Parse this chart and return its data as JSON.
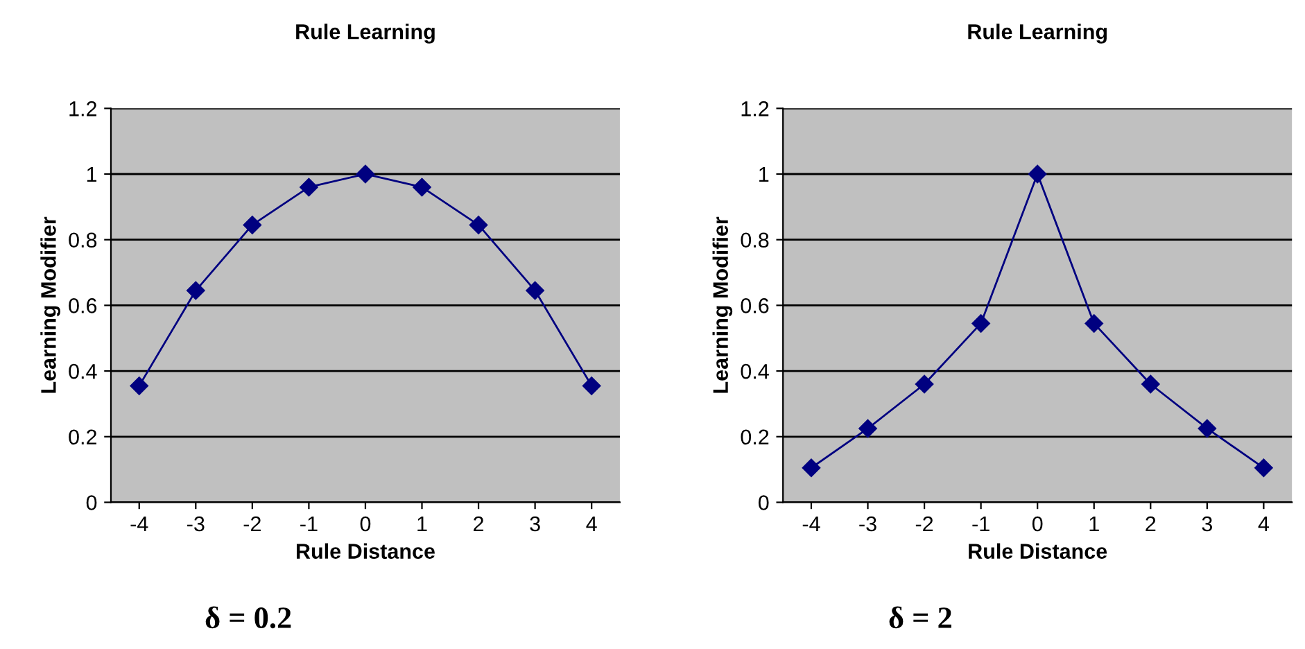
{
  "chart_data": [
    {
      "type": "line",
      "title": "Rule Learning",
      "xlabel": "Rule Distance",
      "ylabel": "Learning Modifier",
      "annotations": [
        "δ = 0.2"
      ],
      "categories": [
        "-4",
        "-3",
        "-2",
        "-1",
        "0",
        "1",
        "2",
        "3",
        "4"
      ],
      "series": [
        {
          "color": "#000080",
          "values": [
            0.355,
            0.645,
            0.845,
            0.96,
            1,
            0.96,
            0.845,
            0.645,
            0.355
          ]
        }
      ],
      "ylim": [
        0,
        1.2
      ],
      "yticks": [
        0,
        0.2,
        0.4,
        0.6,
        0.8,
        1,
        1.2
      ],
      "grid": "y",
      "legend": false,
      "marker": "diamond",
      "line_style": "solid"
    },
    {
      "type": "line",
      "title": "Rule Learning",
      "xlabel": "Rule Distance",
      "ylabel": "Learning Modifier",
      "annotations": [
        "δ = 2"
      ],
      "categories": [
        "-4",
        "-3",
        "-2",
        "-1",
        "0",
        "1",
        "2",
        "3",
        "4"
      ],
      "series": [
        {
          "color": "#000080",
          "values": [
            0.105,
            0.225,
            0.36,
            0.545,
            1,
            0.545,
            0.36,
            0.225,
            0.105
          ]
        }
      ],
      "ylim": [
        0,
        1.2
      ],
      "yticks": [
        0,
        0.2,
        0.4,
        0.6,
        0.8,
        1,
        1.2
      ],
      "grid": "y",
      "legend": false,
      "marker": "diamond",
      "line_style": "solid"
    }
  ]
}
